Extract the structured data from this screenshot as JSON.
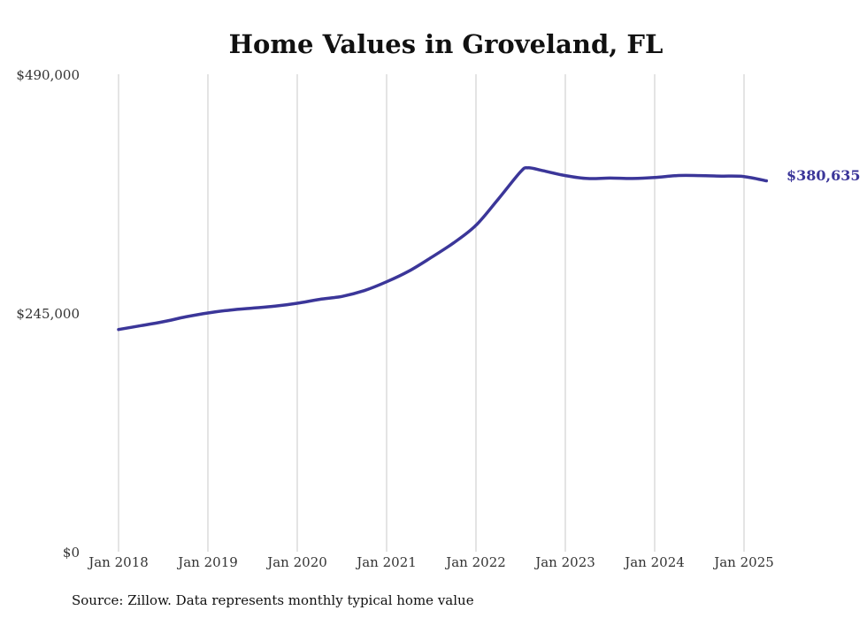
{
  "chart_data": {
    "type": "line",
    "title": "Home Values in Groveland, FL",
    "xlabel": "",
    "ylabel": "",
    "ylim": [
      0,
      490000
    ],
    "y_ticks": [
      {
        "value": 0,
        "label": "$0"
      },
      {
        "value": 245000,
        "label": "$245,000"
      },
      {
        "value": 490000,
        "label": "$490,000"
      }
    ],
    "x_ticks": [
      "Jan 2018",
      "Jan 2019",
      "Jan 2020",
      "Jan 2021",
      "Jan 2022",
      "Jan 2023",
      "Jan 2024",
      "Jan 2025"
    ],
    "grid": "vertical",
    "color": "#3b3699",
    "series": [
      {
        "values": [
          {
            "x": "2018-01",
            "y": 228000
          },
          {
            "x": "2018-04",
            "y": 232000
          },
          {
            "x": "2018-07",
            "y": 236000
          },
          {
            "x": "2018-10",
            "y": 241000
          },
          {
            "x": "2019-01",
            "y": 245000
          },
          {
            "x": "2019-04",
            "y": 248000
          },
          {
            "x": "2019-07",
            "y": 250000
          },
          {
            "x": "2019-10",
            "y": 252000
          },
          {
            "x": "2020-01",
            "y": 255000
          },
          {
            "x": "2020-04",
            "y": 259000
          },
          {
            "x": "2020-07",
            "y": 262000
          },
          {
            "x": "2020-10",
            "y": 268000
          },
          {
            "x": "2021-01",
            "y": 277000
          },
          {
            "x": "2021-04",
            "y": 288000
          },
          {
            "x": "2021-07",
            "y": 302000
          },
          {
            "x": "2021-10",
            "y": 317000
          },
          {
            "x": "2022-01",
            "y": 335000
          },
          {
            "x": "2022-04",
            "y": 362000
          },
          {
            "x": "2022-07",
            "y": 390000
          },
          {
            "x": "2022-08",
            "y": 394000
          },
          {
            "x": "2022-10",
            "y": 391000
          },
          {
            "x": "2023-01",
            "y": 386000
          },
          {
            "x": "2023-04",
            "y": 383000
          },
          {
            "x": "2023-07",
            "y": 383500
          },
          {
            "x": "2023-10",
            "y": 383000
          },
          {
            "x": "2024-01",
            "y": 384000
          },
          {
            "x": "2024-04",
            "y": 386000
          },
          {
            "x": "2024-07",
            "y": 386000
          },
          {
            "x": "2024-10",
            "y": 385500
          },
          {
            "x": "2025-01",
            "y": 385000
          },
          {
            "x": "2025-04",
            "y": 380635
          }
        ]
      }
    ],
    "end_label": "$380,635",
    "source": "Source: Zillow. Data represents monthly typical home value"
  }
}
